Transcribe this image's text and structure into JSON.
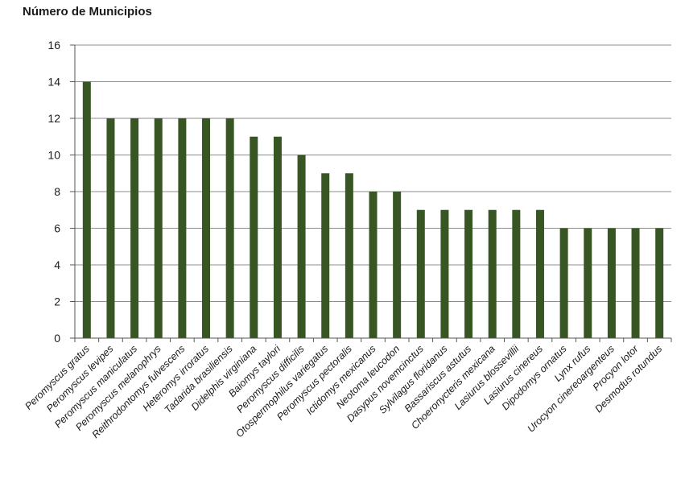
{
  "chart_data": {
    "type": "bar",
    "title": "",
    "ylabel": "Número de Municipios",
    "xlabel": "",
    "ylim": [
      0,
      16
    ],
    "yticks": [
      0,
      2,
      4,
      6,
      8,
      10,
      12,
      14,
      16
    ],
    "grid": true,
    "bar_color": "#375623",
    "categories": [
      "Peromyscus gratus",
      "Peromyscus levipes",
      "Peromyscus maniculatus",
      "Peromyscus melanophrys",
      "Reithrodontomys fulvescens",
      "Heteromys irroratus",
      "Tadarida brasiliensis",
      "Didelphis virginiana",
      "Baiomys taylori",
      "Peromyscus difficilis",
      "Otospermophilus variegatus",
      "Peromyscus pectoralis",
      "Ictidomys mexicanus",
      "Neotoma leucodon",
      "Dasypus novemcinctus",
      "Sylvilagus floridanus",
      "Bassariscus astutus",
      "Choeronycteris mexicana",
      "Lasiurus blossevillii",
      "Lasiurus cinereus",
      "Dipodomys ornatus",
      "Lynx rufus",
      "Urocyon cinereoargenteus",
      "Procyon lotor",
      "Desmodus rotundus"
    ],
    "values": [
      14,
      12,
      12,
      12,
      12,
      12,
      12,
      11,
      11,
      10,
      9,
      9,
      8,
      8,
      7,
      7,
      7,
      7,
      7,
      7,
      6,
      6,
      6,
      6,
      6
    ]
  }
}
